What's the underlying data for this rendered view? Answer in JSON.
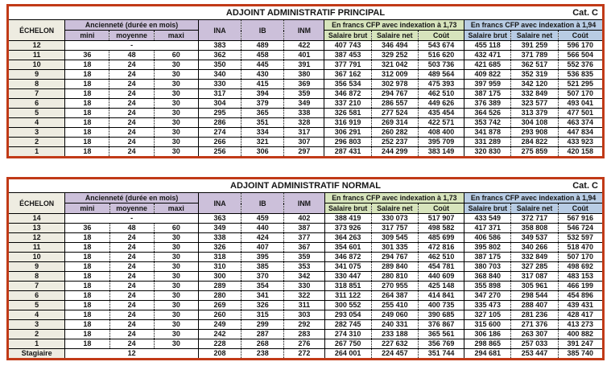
{
  "colors": {
    "outer_border": "#c13a17",
    "lavender_header": "#ccc0da",
    "green_header": "#d7e4bc",
    "blue_header": "#b8cce4",
    "echelon_column": "#eeece1"
  },
  "tables": [
    {
      "title": "ADJOINT ADMINISTRATIF PRINCIPAL",
      "category": "Cat. C",
      "headers": {
        "echelon": "ÉCHELON",
        "anciennete": "Ancienneté (durée en mois)",
        "mini": "mini",
        "moyenne": "moyenne",
        "maxi": "maxi",
        "ina": "INA",
        "ib": "IB",
        "inm": "INM",
        "cfp_173": "En francs CFP avec indexation à 1,73",
        "cfp_194": "En francs CFP avec indexation à 1,94",
        "salaire_brut": "Salaire brut",
        "salaire_net": "Salaire net",
        "cout": "Coût"
      },
      "rows": [
        {
          "echelon": "12",
          "anciennete": [
            "-"
          ],
          "values": [
            "383",
            "489",
            "422",
            "407 743",
            "346 494",
            "543 674",
            "455 118",
            "391 259",
            "596 170"
          ]
        },
        {
          "echelon": "11",
          "anciennete": [
            "36",
            "48",
            "60"
          ],
          "values": [
            "362",
            "458",
            "401",
            "387 453",
            "329 252",
            "516 620",
            "432 471",
            "371 789",
            "566 504"
          ]
        },
        {
          "echelon": "10",
          "anciennete": [
            "18",
            "24",
            "30"
          ],
          "values": [
            "350",
            "445",
            "391",
            "377 791",
            "321 042",
            "503 736",
            "421 685",
            "362 517",
            "552 376"
          ]
        },
        {
          "echelon": "9",
          "anciennete": [
            "18",
            "24",
            "30"
          ],
          "values": [
            "340",
            "430",
            "380",
            "367 162",
            "312 009",
            "489 564",
            "409 822",
            "352 319",
            "536 835"
          ]
        },
        {
          "echelon": "8",
          "anciennete": [
            "18",
            "24",
            "30"
          ],
          "values": [
            "330",
            "415",
            "369",
            "356 534",
            "302 978",
            "475 393",
            "397 959",
            "342 120",
            "521 295"
          ]
        },
        {
          "echelon": "7",
          "anciennete": [
            "18",
            "24",
            "30"
          ],
          "values": [
            "317",
            "394",
            "359",
            "346 872",
            "294 767",
            "462 510",
            "387 175",
            "332 849",
            "507 170"
          ]
        },
        {
          "echelon": "6",
          "anciennete": [
            "18",
            "24",
            "30"
          ],
          "values": [
            "304",
            "379",
            "349",
            "337 210",
            "286 557",
            "449 626",
            "376 389",
            "323 577",
            "493 041"
          ]
        },
        {
          "echelon": "5",
          "anciennete": [
            "18",
            "24",
            "30"
          ],
          "values": [
            "295",
            "365",
            "338",
            "326 581",
            "277 524",
            "435 454",
            "364 526",
            "313 379",
            "477 501"
          ]
        },
        {
          "echelon": "4",
          "anciennete": [
            "18",
            "24",
            "30"
          ],
          "values": [
            "286",
            "351",
            "328",
            "316 919",
            "269 314",
            "422 571",
            "353 742",
            "304 108",
            "463 374"
          ]
        },
        {
          "echelon": "3",
          "anciennete": [
            "18",
            "24",
            "30"
          ],
          "values": [
            "274",
            "334",
            "317",
            "306 291",
            "260 282",
            "408 400",
            "341 878",
            "293 908",
            "447 834"
          ]
        },
        {
          "echelon": "2",
          "anciennete": [
            "18",
            "24",
            "30"
          ],
          "values": [
            "266",
            "321",
            "307",
            "296 803",
            "252 237",
            "395 709",
            "331 289",
            "284 822",
            "433 923"
          ]
        },
        {
          "echelon": "1",
          "anciennete": [
            "18",
            "24",
            "30"
          ],
          "values": [
            "256",
            "306",
            "297",
            "287 431",
            "244 299",
            "383 149",
            "320 830",
            "275 859",
            "420 158"
          ]
        }
      ]
    },
    {
      "title": "ADJOINT ADMINISTRATIF NORMAL",
      "category": "Cat. C",
      "headers": {
        "echelon": "ÉCHELON",
        "anciennete": "Ancienneté (durée en mois)",
        "mini": "mini",
        "moyenne": "moyenne",
        "maxi": "maxi",
        "ina": "INA",
        "ib": "IB",
        "inm": "INM",
        "cfp_173": "En francs CFP avec indexation à 1,73",
        "cfp_194": "En francs CFP avec indexation à 1,94",
        "salaire_brut": "Salaire brut",
        "salaire_net": "Salaire net",
        "cout": "Coût"
      },
      "rows": [
        {
          "echelon": "14",
          "anciennete": [
            "-"
          ],
          "values": [
            "363",
            "459",
            "402",
            "388 419",
            "330 073",
            "517 907",
            "433 549",
            "372 717",
            "567 916"
          ]
        },
        {
          "echelon": "13",
          "anciennete": [
            "36",
            "48",
            "60"
          ],
          "values": [
            "349",
            "440",
            "387",
            "373 926",
            "317 757",
            "498 582",
            "417 371",
            "358 808",
            "546 724"
          ]
        },
        {
          "echelon": "12",
          "anciennete": [
            "18",
            "24",
            "30"
          ],
          "values": [
            "338",
            "424",
            "377",
            "364 263",
            "309 545",
            "485 699",
            "406 586",
            "349 537",
            "532 597"
          ]
        },
        {
          "echelon": "11",
          "anciennete": [
            "18",
            "24",
            "30"
          ],
          "values": [
            "326",
            "407",
            "367",
            "354 601",
            "301 335",
            "472 816",
            "395 802",
            "340 266",
            "518 470"
          ]
        },
        {
          "echelon": "10",
          "anciennete": [
            "18",
            "24",
            "30"
          ],
          "values": [
            "318",
            "395",
            "359",
            "346 872",
            "294 767",
            "462 510",
            "387 175",
            "332 849",
            "507 170"
          ]
        },
        {
          "echelon": "9",
          "anciennete": [
            "18",
            "24",
            "30"
          ],
          "values": [
            "310",
            "385",
            "353",
            "341 075",
            "289 840",
            "454 781",
            "380 703",
            "327 285",
            "498 692"
          ]
        },
        {
          "echelon": "8",
          "anciennete": [
            "18",
            "24",
            "30"
          ],
          "values": [
            "300",
            "370",
            "342",
            "330 447",
            "280 810",
            "440 609",
            "368 840",
            "317 087",
            "483 153"
          ]
        },
        {
          "echelon": "7",
          "anciennete": [
            "18",
            "24",
            "30"
          ],
          "values": [
            "289",
            "354",
            "330",
            "318 851",
            "270 955",
            "425 148",
            "355 898",
            "305 961",
            "466 199"
          ]
        },
        {
          "echelon": "6",
          "anciennete": [
            "18",
            "24",
            "30"
          ],
          "values": [
            "280",
            "341",
            "322",
            "311 122",
            "264 387",
            "414 841",
            "347 270",
            "298 544",
            "454 896"
          ]
        },
        {
          "echelon": "5",
          "anciennete": [
            "18",
            "24",
            "30"
          ],
          "values": [
            "269",
            "326",
            "311",
            "300 552",
            "255 410",
            "400 735",
            "335 473",
            "288 407",
            "439 431"
          ]
        },
        {
          "echelon": "4",
          "anciennete": [
            "18",
            "24",
            "30"
          ],
          "values": [
            "260",
            "315",
            "303",
            "293 054",
            "249 060",
            "390 685",
            "327 105",
            "281 236",
            "428 417"
          ]
        },
        {
          "echelon": "3",
          "anciennete": [
            "18",
            "24",
            "30"
          ],
          "values": [
            "249",
            "299",
            "292",
            "282 745",
            "240 331",
            "376 867",
            "315 600",
            "271 376",
            "413 273"
          ]
        },
        {
          "echelon": "2",
          "anciennete": [
            "18",
            "24",
            "30"
          ],
          "values": [
            "242",
            "287",
            "283",
            "274 310",
            "233 188",
            "365 561",
            "306 186",
            "263 307",
            "400 882"
          ]
        },
        {
          "echelon": "1",
          "anciennete": [
            "18",
            "24",
            "30"
          ],
          "values": [
            "228",
            "268",
            "276",
            "267 750",
            "227 632",
            "356 769",
            "298 865",
            "257 033",
            "391 247"
          ]
        },
        {
          "echelon": "Stagiaire",
          "anciennete": [
            "12"
          ],
          "values": [
            "208",
            "238",
            "272",
            "264 001",
            "224 457",
            "351 744",
            "294 681",
            "253 447",
            "385 740"
          ]
        }
      ]
    }
  ]
}
